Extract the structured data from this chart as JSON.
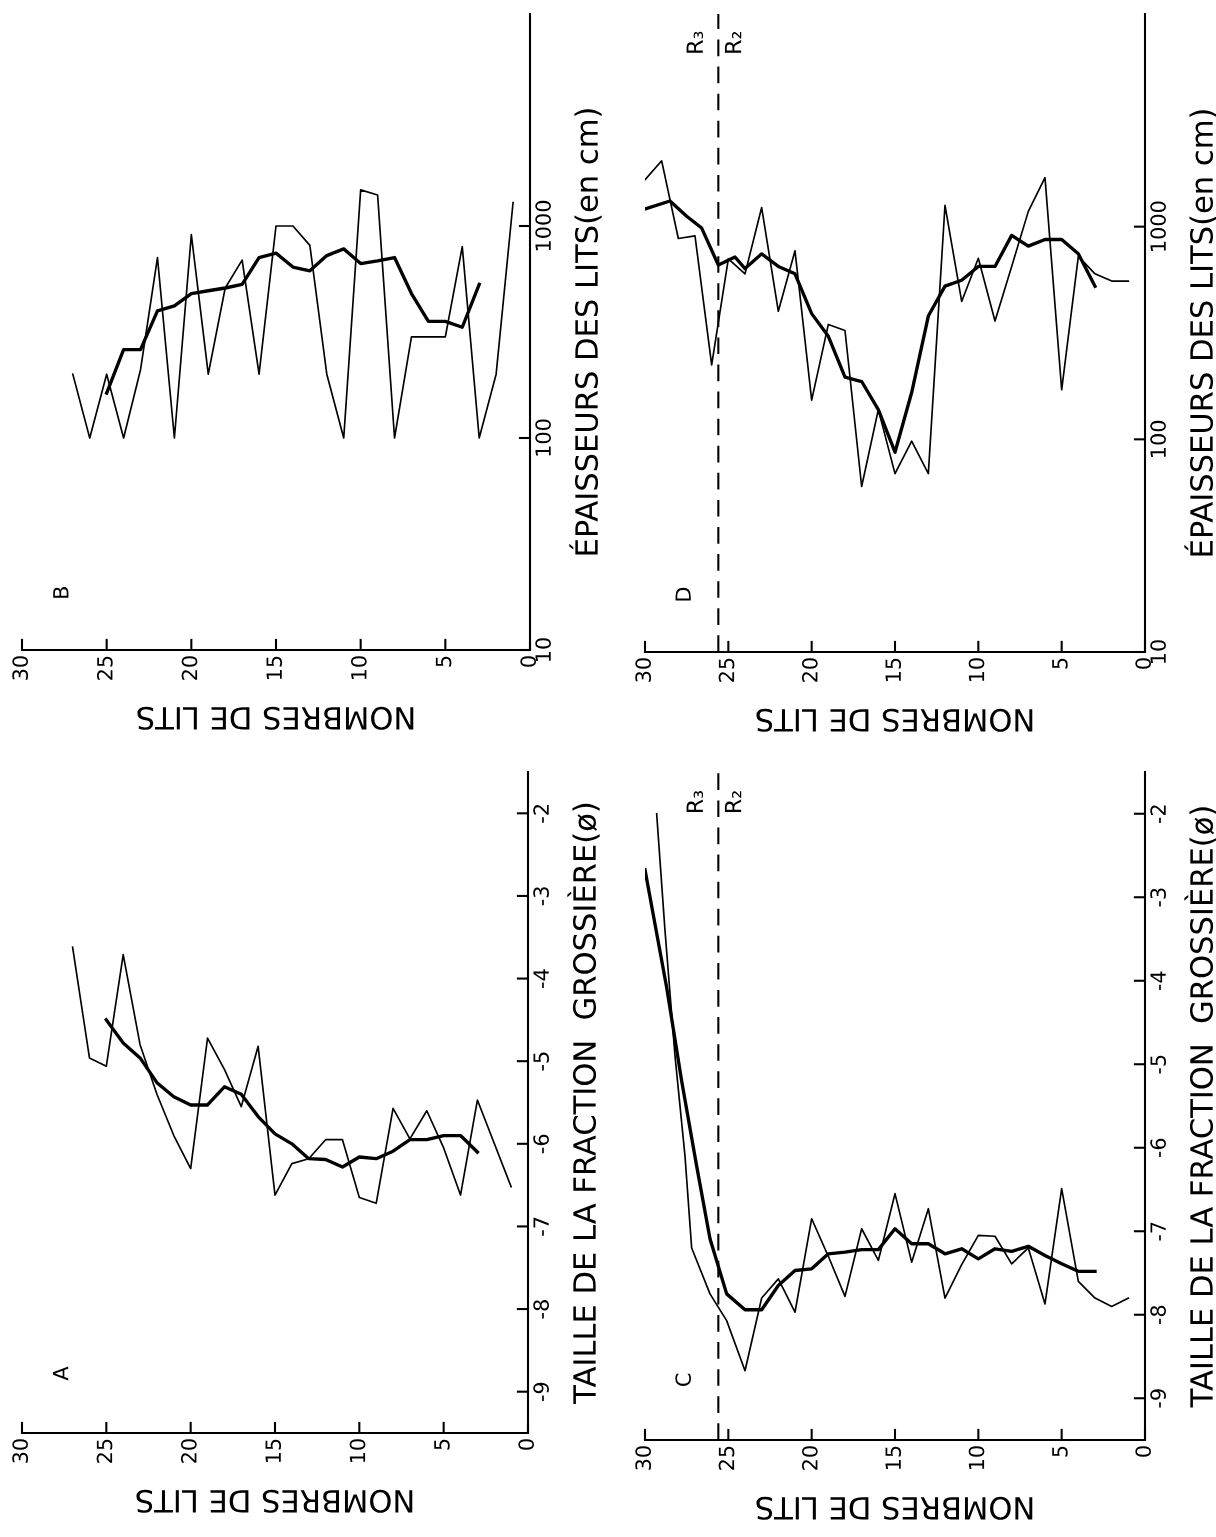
{
  "chart_data": [
    {
      "type": "line",
      "xlabel": "NOMBRES DE LITS",
      "ylabel": "ÉPAISSEURS DES LITS(en cm)",
      "log": "y",
      "xlim": [
        30,
        0
      ],
      "xticks": [
        0,
        5,
        10,
        15,
        20,
        25,
        30
      ],
      "ylim": [
        10,
        10000
      ],
      "yticks": [
        10,
        100,
        1000
      ],
      "grid": false,
      "legend": false,
      "marker": "none",
      "line_style": "solid",
      "annotations": [
        "B"
      ],
      "series": [
        {
          "color": "#000000",
          "x": [
            27,
            26,
            25,
            24,
            23,
            22,
            21,
            20,
            19,
            18,
            17,
            16,
            15,
            14,
            13,
            12,
            11,
            10,
            9,
            8,
            7,
            6,
            5,
            4,
            3,
            2,
            1
          ],
          "values": [
            200,
            100,
            200,
            100,
            210,
            710,
            100,
            910,
            200,
            510,
            690,
            200,
            1000,
            1000,
            810,
            200,
            100,
            1480,
            1400,
            100,
            300,
            300,
            300,
            800,
            100,
            200,
            1290
          ]
        },
        {
          "color": "#000000",
          "x": [
            25,
            24,
            23,
            22,
            21,
            20,
            19,
            18,
            17,
            16,
            15,
            14,
            13,
            12,
            11,
            10,
            9,
            8,
            7,
            6,
            5,
            4,
            3
          ],
          "values": [
            163,
            261,
            261,
            398,
            420,
            480,
            495,
            510,
            530,
            710,
            745,
            640,
            615,
            725,
            780,
            665,
            685,
            710,
            480,
            355,
            355,
            333,
            530
          ]
        }
      ]
    },
    {
      "type": "line",
      "xlabel": "NOMBRES DE LITS",
      "ylabel": "ÉPAISSEURS DES LITS(en cm)",
      "log": "y",
      "xlim": [
        30,
        0
      ],
      "xticks": [
        0,
        5,
        10,
        15,
        20,
        25,
        30
      ],
      "ylim": [
        10,
        10000
      ],
      "yticks": [
        10,
        100,
        1000
      ],
      "grid": false,
      "legend": false,
      "marker": "none",
      "line_style": "solid",
      "annotations": [
        "D",
        "R₃",
        "R₂"
      ],
      "ref_lines": [
        {
          "axis": "x",
          "value": 25.6,
          "line_style": "dashed",
          "color": "#000000"
        }
      ],
      "series": [
        {
          "color": "#000000",
          "x": [
            30,
            29,
            28,
            27,
            26,
            25,
            24,
            23,
            22,
            21,
            20,
            19,
            18,
            17,
            16,
            15,
            14,
            13,
            12,
            11,
            10,
            9,
            8,
            7,
            6,
            5,
            4,
            3,
            2,
            1
          ],
          "values": [
            1660,
            2040,
            880,
            905,
            224,
            705,
            600,
            1230,
            400,
            770,
            153,
            347,
            325,
            60,
            138,
            69,
            98,
            69,
            1260,
            445,
            710,
            360,
            650,
            1180,
            1700,
            171,
            725,
            600,
            555,
            555
          ]
        },
        {
          "color": "#000000",
          "x": [
            30,
            28.5,
            27.5,
            26.6,
            25.6,
            24.6,
            24,
            23,
            22,
            21,
            20,
            19,
            18,
            17,
            16,
            15,
            14,
            13,
            12,
            11,
            10,
            9,
            8,
            7,
            6,
            5,
            4,
            3
          ],
          "values": [
            1210,
            1320,
            1120,
            985,
            660,
            720,
            635,
            745,
            650,
            600,
            390,
            305,
            196,
            187,
            138,
            87,
            166,
            380,
            525,
            560,
            650,
            650,
            910,
            810,
            870,
            870,
            745,
            525
          ]
        }
      ]
    },
    {
      "type": "line",
      "xlabel": "NOMBRES DE LITS",
      "ylabel": "TAILLE DE LA FRACTION  GROSSIÈRE(ø)",
      "xlim": [
        30,
        0
      ],
      "xticks": [
        0,
        5,
        10,
        15,
        20,
        25,
        30
      ],
      "ylim": [
        -9.5,
        -1.5
      ],
      "yticks": [
        -9,
        -8,
        -7,
        -6,
        -5,
        -4,
        -3,
        -2
      ],
      "grid": false,
      "legend": false,
      "marker": "none",
      "line_style": "solid",
      "annotations": [
        "A"
      ],
      "series": [
        {
          "color": "#000000",
          "x": [
            27,
            26,
            25,
            24,
            23,
            22,
            21,
            20,
            19,
            18,
            17,
            16,
            15,
            14,
            13,
            12,
            11,
            10,
            9,
            8,
            7,
            6,
            5,
            4,
            3,
            1
          ],
          "values": [
            -3.62,
            -4.96,
            -5.06,
            -3.71,
            -4.8,
            -5.4,
            -5.9,
            -6.3,
            -4.72,
            -5.1,
            -5.55,
            -4.82,
            -6.62,
            -6.24,
            -6.18,
            -5.95,
            -5.95,
            -6.65,
            -6.72,
            -5.57,
            -5.94,
            -5.6,
            -6.05,
            -6.62,
            -5.47,
            -6.52
          ]
        },
        {
          "color": "#000000",
          "x": [
            25,
            24,
            23,
            22,
            21,
            20,
            19,
            18,
            17,
            16,
            15,
            14,
            13,
            12,
            11,
            10,
            9,
            8,
            7,
            6,
            5,
            4,
            3
          ],
          "values": [
            -4.5,
            -4.78,
            -4.96,
            -5.26,
            -5.43,
            -5.53,
            -5.53,
            -5.31,
            -5.4,
            -5.67,
            -5.88,
            -6.0,
            -6.18,
            -6.19,
            -6.28,
            -6.16,
            -6.18,
            -6.09,
            -5.95,
            -5.95,
            -5.9,
            -5.9,
            -6.1
          ]
        }
      ]
    },
    {
      "type": "line",
      "xlabel": "NOMBRES DE LITS",
      "ylabel": "TAILLE DE LA FRACTION  GROSSIÈRE(ø)",
      "xlim": [
        30,
        0
      ],
      "xticks": [
        0,
        5,
        10,
        15,
        20,
        25,
        30
      ],
      "ylim": [
        -9.5,
        -1.5
      ],
      "yticks": [
        -9,
        -8,
        -7,
        -6,
        -5,
        -4,
        -3,
        -2
      ],
      "grid": false,
      "legend": false,
      "marker": "none",
      "line_style": "solid",
      "annotations": [
        "C",
        "R₃",
        "R₂"
      ],
      "ref_lines": [
        {
          "axis": "x",
          "value": 25.6,
          "line_style": "dashed",
          "color": "#000000"
        }
      ],
      "series": [
        {
          "color": "#000000",
          "x": [
            29.3,
            28.8,
            28.2,
            27.6,
            27.2,
            26.1,
            25.1,
            24,
            23,
            22,
            21,
            20,
            19,
            18,
            17,
            16,
            15,
            14,
            13,
            12,
            11,
            10,
            9,
            8,
            7,
            6,
            5,
            4,
            3,
            2,
            1
          ],
          "values": [
            -2.0,
            -3.4,
            -4.9,
            -6.1,
            -7.2,
            -7.75,
            -8.07,
            -8.67,
            -7.8,
            -7.57,
            -7.97,
            -6.85,
            -7.3,
            -7.78,
            -6.97,
            -7.35,
            -6.55,
            -7.37,
            -6.73,
            -7.8,
            -7.4,
            -7.05,
            -7.06,
            -7.39,
            -7.2,
            -7.87,
            -6.49,
            -7.6,
            -7.8,
            -7.9,
            -7.8
          ]
        },
        {
          "color": "#000000",
          "x": [
            30,
            28.7,
            27.8,
            26.9,
            26.1,
            25.1,
            24,
            23,
            22,
            21,
            20,
            19,
            18,
            17,
            16,
            15,
            14,
            13,
            12,
            11,
            10,
            9,
            8,
            7,
            6,
            5,
            4,
            3
          ],
          "values": [
            -2.67,
            -4.08,
            -5.2,
            -6.22,
            -7.09,
            -7.75,
            -7.94,
            -7.94,
            -7.65,
            -7.47,
            -7.45,
            -7.27,
            -7.25,
            -7.22,
            -7.22,
            -6.97,
            -7.15,
            -7.15,
            -7.27,
            -7.21,
            -7.33,
            -7.21,
            -7.24,
            -7.18,
            -7.29,
            -7.39,
            -7.48,
            -7.48
          ]
        }
      ]
    }
  ]
}
